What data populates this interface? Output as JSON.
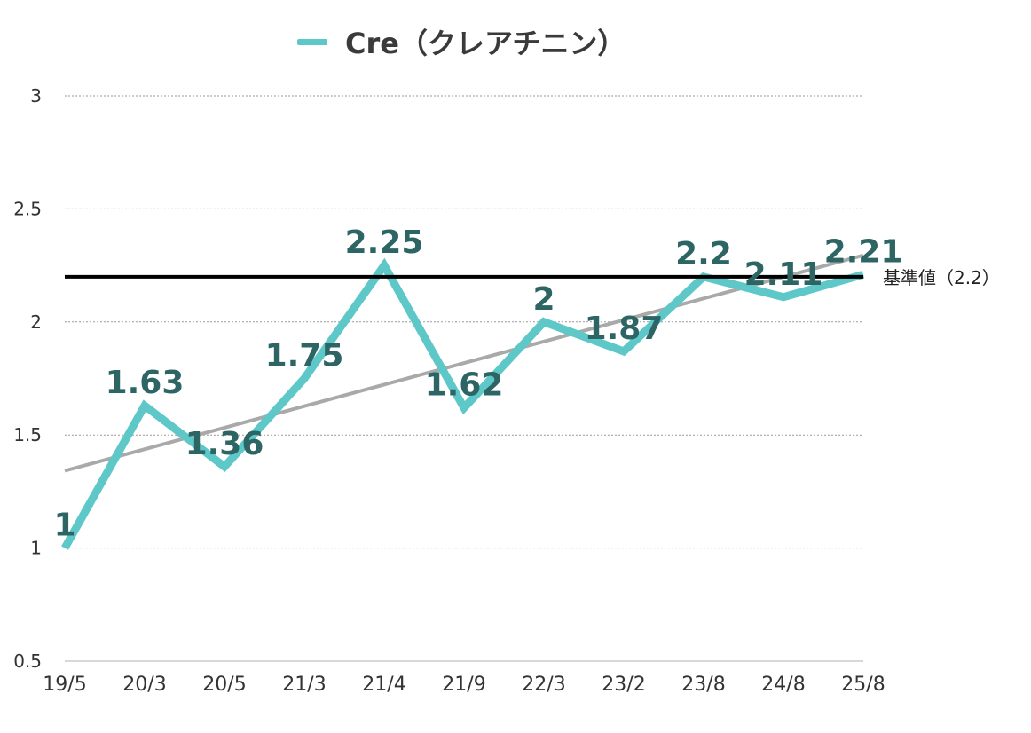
{
  "chart_data": {
    "type": "line",
    "categories": [
      "19/5",
      "20/3",
      "20/5",
      "21/3",
      "21/4",
      "21/9",
      "22/3",
      "23/2",
      "23/8",
      "24/8",
      "25/8"
    ],
    "series": [
      {
        "name": "Cre（クレアチニン）",
        "color": "#5ec8c9",
        "values": [
          1,
          1.63,
          1.36,
          1.75,
          2.25,
          1.62,
          2,
          1.87,
          2.2,
          2.11,
          2.21
        ],
        "data_labels": [
          "1",
          "1.63",
          "1.36",
          "1.75",
          "2.25",
          "1.62",
          "2",
          "1.87",
          "2.2",
          "2.11",
          "2.21"
        ]
      }
    ],
    "trendline": {
      "type": "linear",
      "color": "#a9a9a9"
    },
    "reference_line": {
      "value": 2.2,
      "label": "基準値（2.2）",
      "color": "#000000"
    },
    "ylim": [
      0.5,
      3
    ],
    "yticks": [
      {
        "value": 0.5,
        "label": "0.5"
      },
      {
        "value": 1,
        "label": "1"
      },
      {
        "value": 1.5,
        "label": "1.5"
      },
      {
        "value": 2,
        "label": "2"
      },
      {
        "value": 2.5,
        "label": "2.5"
      },
      {
        "value": 3,
        "label": "3"
      }
    ],
    "grid": true,
    "legend_position": "top",
    "title": "",
    "xlabel": "",
    "ylabel": ""
  }
}
